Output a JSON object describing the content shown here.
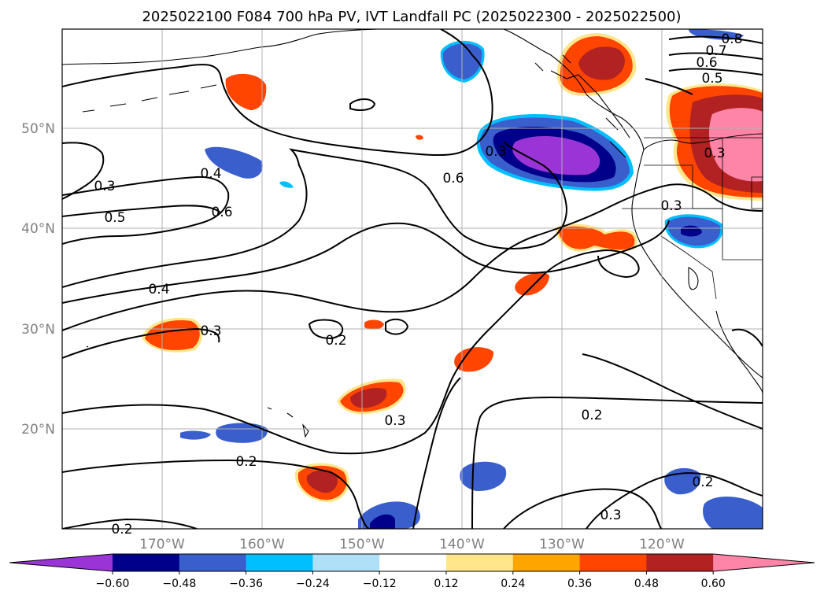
{
  "title": "2025022100 F084 700 hPa PV, IVT Landfall PC (2025022300 - 2025022500)",
  "map": {
    "lat_labels": [
      "50°N",
      "40°N",
      "30°N",
      "20°N"
    ],
    "lon_labels": [
      "170°W",
      "160°W",
      "150°W",
      "140°W",
      "130°W",
      "120°W"
    ],
    "contour_labels": [
      "0.8",
      "0.7",
      "0.6",
      "0.5",
      "0.3",
      "0.4",
      "0.3",
      "0.5",
      "0.6",
      "0.3",
      "0.6",
      "0.3",
      "0.4",
      "0.3",
      "0.2",
      "0.3",
      "0.2",
      "0.2",
      "0.2",
      "0.3",
      "0.2"
    ]
  },
  "colorbar": {
    "ticks": [
      "−0.60",
      "−0.48",
      "−0.36",
      "−0.24",
      "−0.12",
      "0.12",
      "0.24",
      "0.36",
      "0.48",
      "0.60"
    ],
    "colors": [
      "#9a34d6",
      "#00008b",
      "#3a5fcd",
      "#00bfff",
      "#b0e0f8",
      "#ffffff",
      "#ffe68a",
      "#ffa500",
      "#ff4500",
      "#b22222",
      "#ff85a8"
    ]
  }
}
